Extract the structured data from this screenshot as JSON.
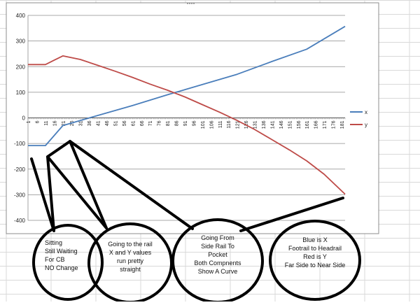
{
  "chart_data": {
    "type": "line",
    "x": {
      "start": 1,
      "end": 183,
      "step": 1
    },
    "x_tick_labels": [
      "1",
      "6",
      "11",
      "16",
      "21",
      "26",
      "31",
      "36",
      "41",
      "46",
      "51",
      "56",
      "61",
      "66",
      "71",
      "76",
      "81",
      "86",
      "91",
      "96",
      "101",
      "106",
      "111",
      "116",
      "121",
      "126",
      "131",
      "136",
      "141",
      "146",
      "151",
      "156",
      "161",
      "166",
      "171",
      "176",
      "181"
    ],
    "ylim": [
      -400,
      400
    ],
    "y_tick_labels": [
      "400",
      "300",
      "200",
      "100",
      "0",
      "-100",
      "-200",
      "-300",
      "-400"
    ],
    "grid": "horizontal",
    "legend": "right",
    "series": [
      {
        "name": "x",
        "color": "#4a7ebb",
        "points": [
          [
            1,
            -108
          ],
          [
            11,
            -108
          ],
          [
            21,
            -30
          ],
          [
            31,
            -10
          ],
          [
            61,
            48
          ],
          [
            81,
            90
          ],
          [
            101,
            130
          ],
          [
            121,
            170
          ],
          [
            141,
            220
          ],
          [
            161,
            268
          ],
          [
            183,
            357
          ]
        ]
      },
      {
        "name": "y",
        "color": "#be4b48",
        "points": [
          [
            1,
            208
          ],
          [
            11,
            208
          ],
          [
            16,
            225
          ],
          [
            21,
            242
          ],
          [
            31,
            228
          ],
          [
            41,
            205
          ],
          [
            51,
            182
          ],
          [
            61,
            158
          ],
          [
            71,
            132
          ],
          [
            81,
            108
          ],
          [
            91,
            82
          ],
          [
            101,
            52
          ],
          [
            111,
            22
          ],
          [
            121,
            -10
          ],
          [
            131,
            -45
          ],
          [
            141,
            -85
          ],
          [
            151,
            -125
          ],
          [
            161,
            -168
          ],
          [
            171,
            -220
          ],
          [
            183,
            -298
          ]
        ]
      }
    ]
  },
  "annotations": [
    {
      "lines": [
        "Sitting",
        "Still Waiting",
        "For CB",
        "NO Change"
      ]
    },
    {
      "lines": [
        "Going to the rail",
        "X and Y values",
        "run pretty",
        "straight"
      ]
    },
    {
      "lines": [
        "Going From",
        "Side Rail To",
        "Pocket",
        "Both Compnents",
        "Show A Curve"
      ]
    },
    {
      "lines": [
        "Blue is X",
        "Footrail to Headrail",
        "Red is Y",
        "Far Side to Near Side"
      ]
    }
  ],
  "colors": {
    "x_series": "#4a7ebb",
    "y_series": "#be4b48",
    "sheet_grid": "#d9d9d9",
    "chart_border": "#8c8c8c",
    "plot_grid": "#8c8c8c",
    "callout": "#000000"
  }
}
